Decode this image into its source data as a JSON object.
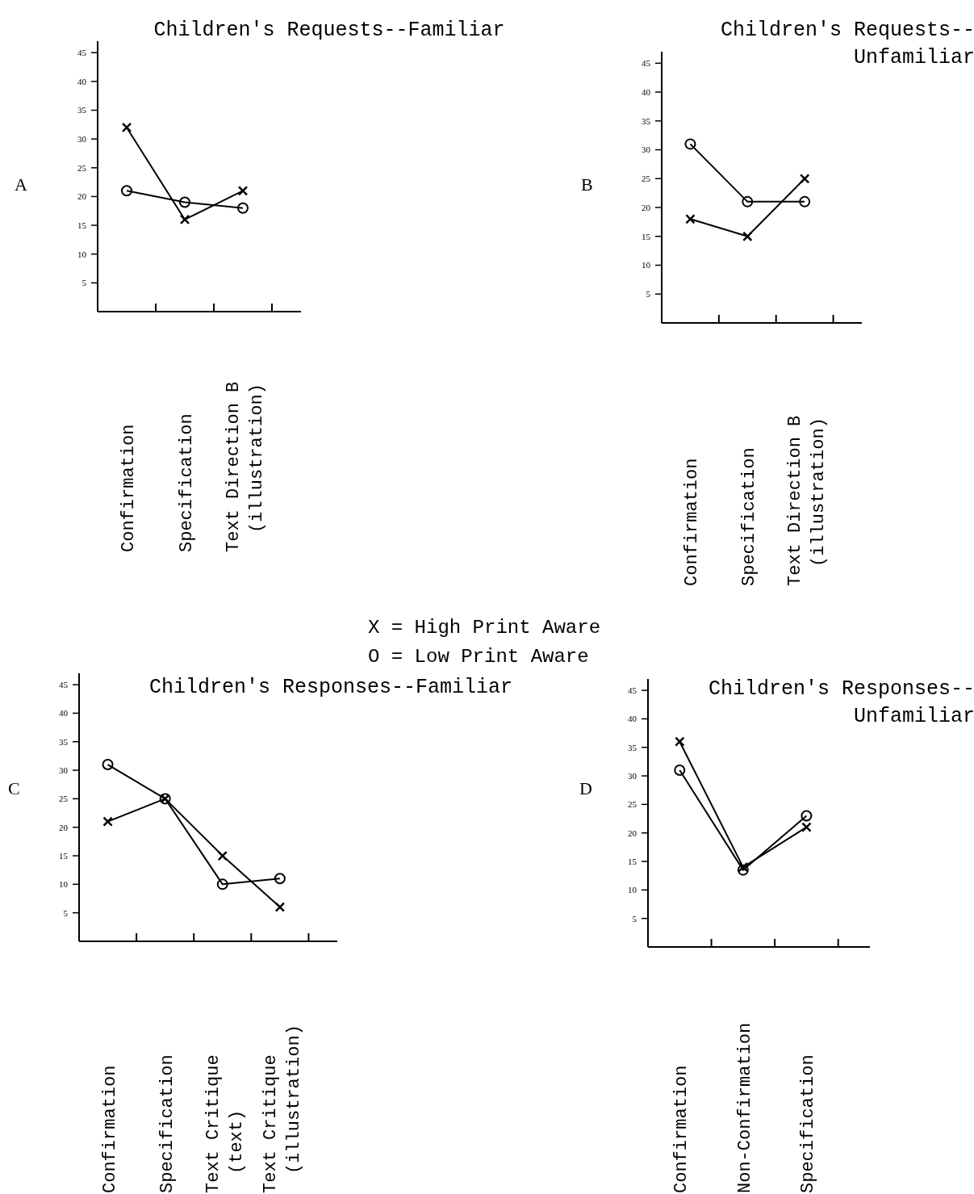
{
  "chart_data": [
    {
      "type": "line",
      "title": "Children's Requests--Familiar",
      "annotations": [
        "A",
        "X = High Print Aware",
        "O = Low Print Aware"
      ],
      "categories": [
        "Confirmation",
        "Specification",
        "Text Direction B (illustration)"
      ],
      "ylim": [
        0,
        47
      ],
      "yticks": [
        5,
        10,
        15,
        20,
        25,
        30,
        35,
        40,
        45
      ],
      "series": [
        {
          "color": "#000000",
          "marker": "cross",
          "values": [
            32,
            16,
            21
          ]
        },
        {
          "color": "#000000",
          "marker": "circle",
          "values": [
            21,
            19,
            18
          ]
        }
      ]
    },
    {
      "type": "line",
      "title": "Children's Requests--Unfamiliar",
      "annotations": [
        "B"
      ],
      "categories": [
        "Confirmation",
        "Specification",
        "Text Direction B (illustration)"
      ],
      "ylim": [
        0,
        47
      ],
      "yticks": [
        5,
        10,
        15,
        20,
        25,
        30,
        35,
        40,
        45
      ],
      "series": [
        {
          "color": "#000000",
          "marker": "cross",
          "values": [
            18,
            15,
            25
          ]
        },
        {
          "color": "#000000",
          "marker": "circle",
          "values": [
            31,
            21,
            21
          ]
        }
      ]
    },
    {
      "type": "line",
      "title": "Children's Responses--Familiar",
      "annotations": [
        "C"
      ],
      "categories": [
        "Confirmation",
        "Specification",
        "Text Critique (text)",
        "Text Critique (illustration)"
      ],
      "ylim": [
        0,
        47
      ],
      "yticks": [
        5,
        10,
        15,
        20,
        25,
        30,
        35,
        40,
        45
      ],
      "series": [
        {
          "color": "#000000",
          "marker": "cross",
          "values": [
            21,
            25,
            15,
            6
          ]
        },
        {
          "color": "#000000",
          "marker": "circle",
          "values": [
            31,
            25,
            10,
            11
          ]
        }
      ]
    },
    {
      "type": "line",
      "title": "Children's Responses--Unfamiliar",
      "annotations": [
        "D"
      ],
      "categories": [
        "Confirmation",
        "Non-Confirmation",
        "Specification"
      ],
      "ylim": [
        0,
        47
      ],
      "yticks": [
        5,
        10,
        15,
        20,
        25,
        30,
        35,
        40,
        45
      ],
      "series": [
        {
          "color": "#000000",
          "marker": "cross",
          "values": [
            36,
            14,
            21
          ]
        },
        {
          "color": "#000000",
          "marker": "circle",
          "values": [
            31,
            13.5,
            23
          ]
        }
      ]
    }
  ]
}
